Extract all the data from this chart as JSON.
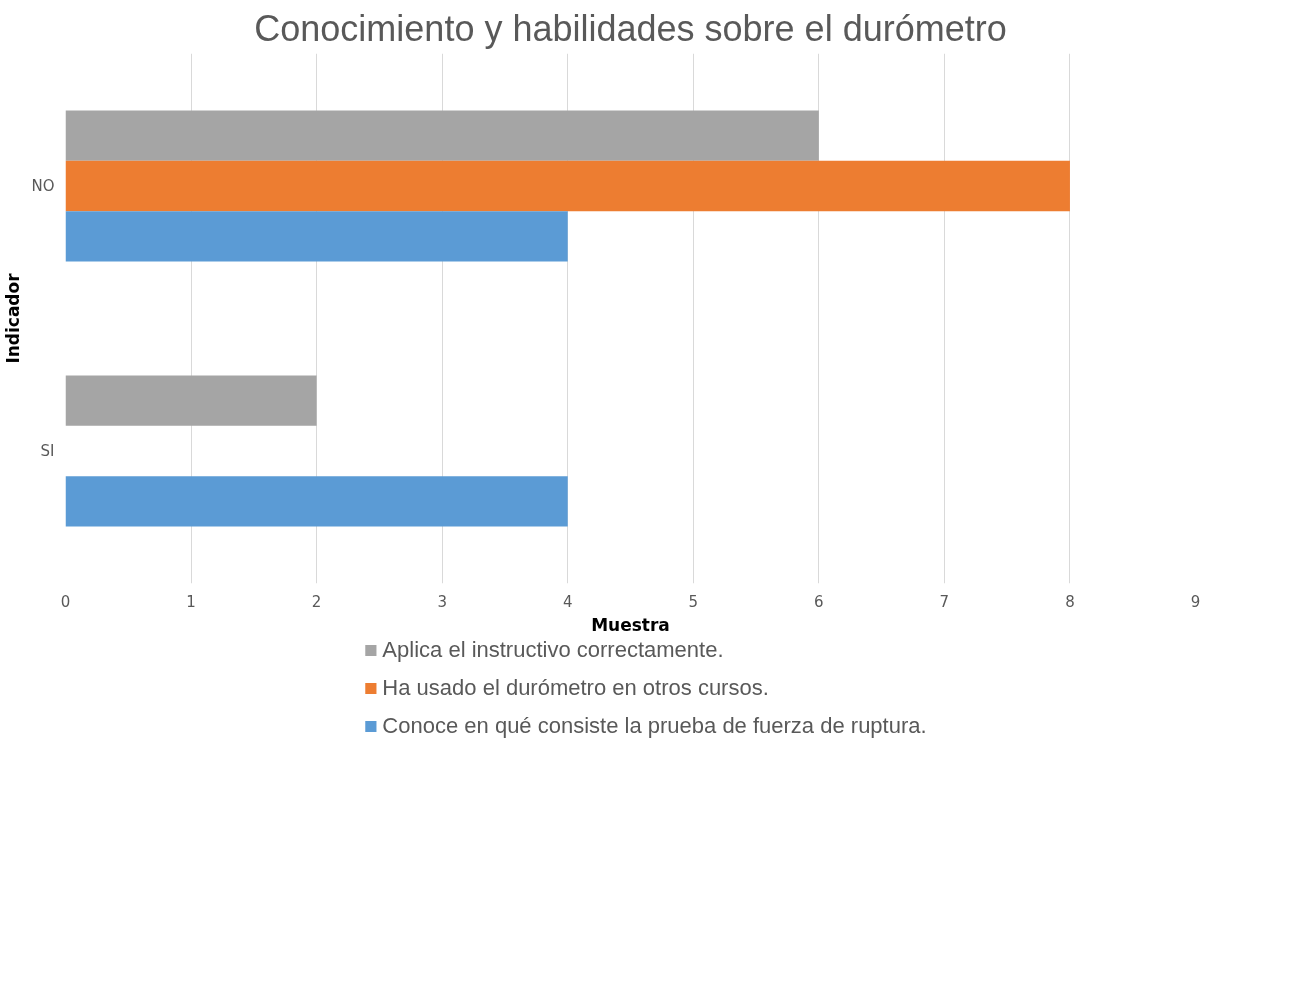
{
  "chart_data": {
    "type": "bar",
    "orientation": "horizontal",
    "title": "Conocimiento y habilidades sobre el durómetro",
    "xlabel": "Muestra",
    "ylabel": "Indicador",
    "categories": [
      "NO",
      "SI"
    ],
    "series": [
      {
        "name": "Aplica el instructivo correctamente.",
        "color": "#a5a5a5",
        "values": [
          6,
          2
        ]
      },
      {
        "name": "Ha usado el durómetro en otros cursos.",
        "color": "#ed7d31",
        "values": [
          8,
          0
        ]
      },
      {
        "name": "Conoce en qué consiste la prueba de fuerza de ruptura.",
        "color": "#5b9bd5",
        "values": [
          4,
          4
        ]
      }
    ],
    "xlim": [
      0,
      9
    ],
    "xticks": [
      0,
      1,
      2,
      3,
      4,
      5,
      6,
      7,
      8,
      9
    ],
    "grid": "x",
    "legend": "bottom"
  }
}
